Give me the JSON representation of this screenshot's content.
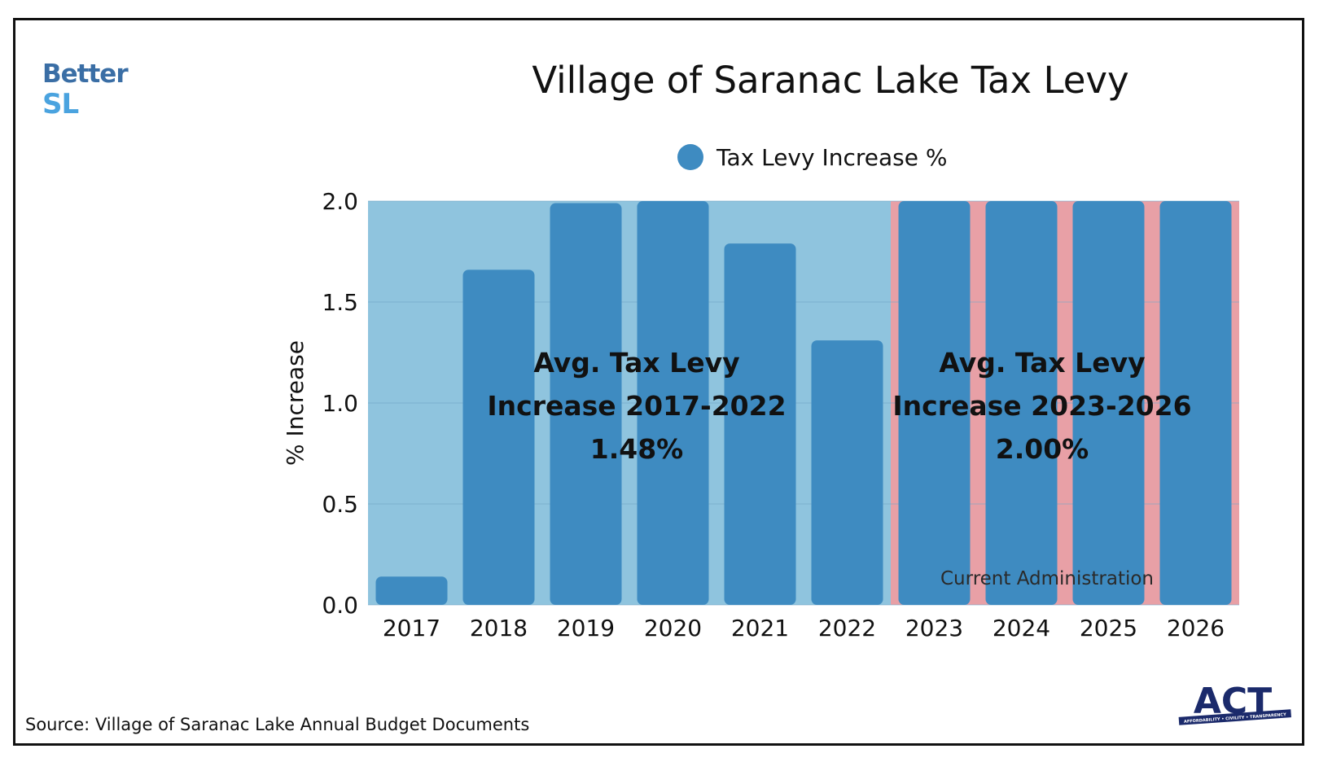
{
  "logo": {
    "line1": "Better",
    "line2": "SL"
  },
  "legend": {
    "label": "Tax Levy Increase %",
    "color": "#3e8bc1"
  },
  "source_note": "Source: Village of Saranac Lake Annual Budget Documents",
  "act_logo": {
    "text": "ACT",
    "tagline": "AFFORDABILITY • CIVILITY • TRANSPARENCY"
  },
  "colors": {
    "bar": "#3e8bc1",
    "period1_background": "#8fc4de",
    "period2_background": "#e8a0a6",
    "gridline": "#6fa5c6",
    "brand_dark": "#3a6ea5",
    "brand_light": "#4aa3df",
    "act_navy": "#1b2a6b"
  },
  "chart_data": {
    "type": "bar",
    "title": "Village of Saranac Lake Tax Levy",
    "xlabel": "",
    "ylabel": "% Increase",
    "ylim": [
      0,
      2.0
    ],
    "yticks": [
      "0.0",
      "0.5",
      "1.0",
      "1.5",
      "2.0"
    ],
    "categories": [
      "2017",
      "2018",
      "2019",
      "2020",
      "2021",
      "2022",
      "2023",
      "2024",
      "2025",
      "2026"
    ],
    "series": [
      {
        "name": "Tax Levy Increase %",
        "values": [
          0.14,
          1.66,
          1.99,
          2.0,
          1.79,
          1.31,
          2.0,
          2.0,
          2.0,
          2.0
        ]
      }
    ],
    "periods": [
      {
        "from": "2017",
        "to": "2022",
        "annotation": [
          "Avg. Tax Levy",
          "Increase 2017-2022",
          "1.48%"
        ]
      },
      {
        "from": "2023",
        "to": "2026",
        "annotation": [
          "Avg. Tax Levy",
          "Increase 2023-2026",
          "2.00%"
        ],
        "label": "Current Administration"
      }
    ]
  }
}
